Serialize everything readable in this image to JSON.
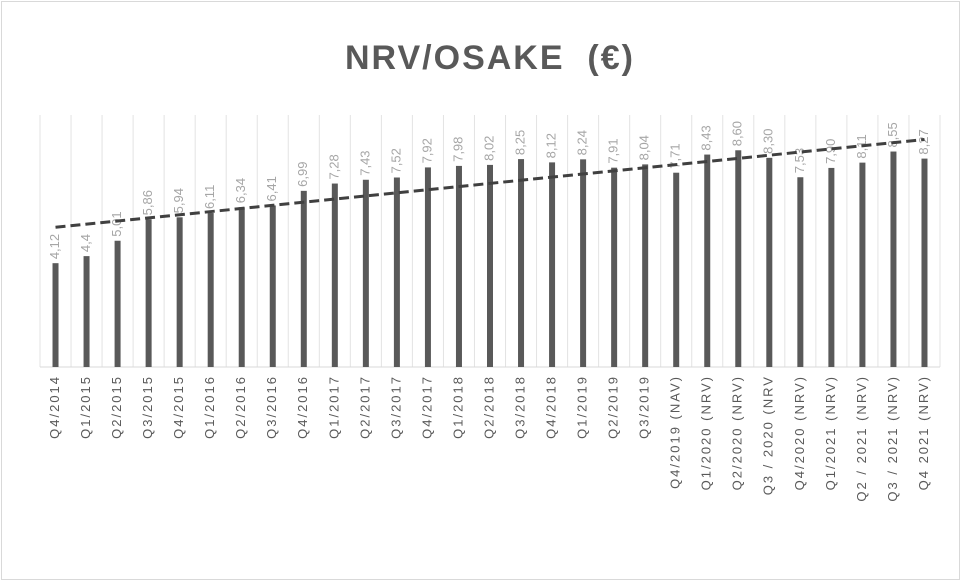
{
  "chart_data": {
    "type": "bar",
    "title": "NRV/OSAKE  (€)",
    "categories": [
      "Q4/2014",
      "Q1/2015",
      "Q2/2015",
      "Q3/2015",
      "Q4/2015",
      "Q1/2016",
      "Q2/2016",
      "Q3/2016",
      "Q4/2016",
      "Q1/2017",
      "Q2/2017",
      "Q3/2017",
      "Q4/2017",
      "Q1/2018",
      "Q2/2018",
      "Q3/2018",
      "Q4/2018",
      "Q1/2019",
      "Q2/2019",
      "Q3/2019",
      "Q4/2019 (NAV)",
      "Q1/2020 (NRV)",
      "Q2/2020 (NRV)",
      "Q3 / 2020 (NRV",
      "Q4/2020 (NRV)",
      "Q1/2021 (NRV)",
      "Q2 / 2021 (NRV)",
      "Q3 / 2021 (NRV)",
      "Q4 2021 (NRV)"
    ],
    "values": [
      4.12,
      4.4,
      5.01,
      5.86,
      5.94,
      6.11,
      6.34,
      6.41,
      6.99,
      7.28,
      7.43,
      7.52,
      7.92,
      7.98,
      8.02,
      8.25,
      8.12,
      8.24,
      7.91,
      8.04,
      7.71,
      8.43,
      8.6,
      8.3,
      7.53,
      7.9,
      8.11,
      8.55,
      8.27
    ],
    "value_labels": [
      "4,12",
      "4,4",
      "5,01",
      "5,86",
      "5,94",
      "6,11",
      "6,34",
      "6,41",
      "6,99",
      "7,28",
      "7,43",
      "7,52",
      "7,92",
      "7,98",
      "8,02",
      "8,25",
      "8,12",
      "8,24",
      "7,91",
      "8,04",
      "7,71",
      "8,43",
      "8,60",
      "8,30",
      "7,53",
      "7,90",
      "8,11",
      "8,55",
      "8,27"
    ],
    "color": "#595959",
    "ylim": [
      0,
      10
    ],
    "trendline": true,
    "grid": true
  }
}
